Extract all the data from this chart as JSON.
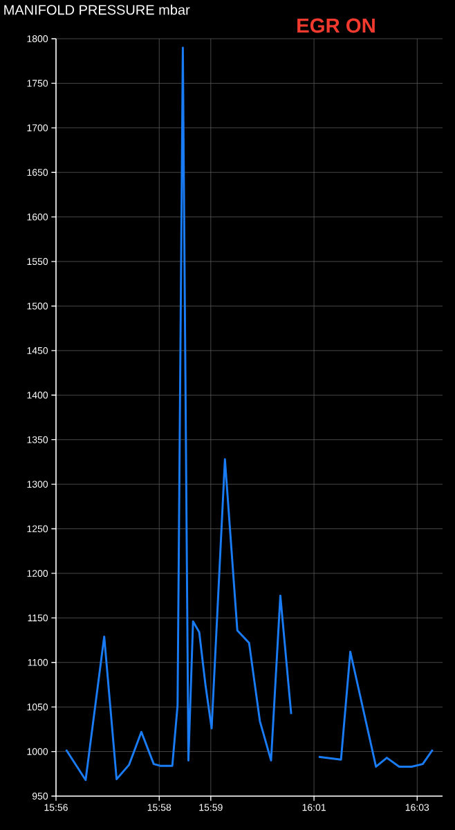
{
  "chart_data": {
    "type": "line",
    "title": "MANIFOLD PRESSURE  mbar",
    "annotations": [
      "EGR ON"
    ],
    "x": [
      15.9366,
      15.9429,
      15.9489,
      15.9529,
      15.9569,
      15.9609,
      15.9649,
      15.967,
      15.9689,
      15.9709,
      15.9726,
      15.9743,
      15.9761,
      15.9776,
      15.9796,
      15.9816,
      15.9836,
      15.9879,
      15.9919,
      15.9957,
      15.9992,
      16.0028,
      16.0058,
      16.0093,
      16.0133,
      16.0182,
      16.0254,
      16.0284,
      16.0367,
      16.0402,
      16.0442,
      16.0482,
      16.0518,
      16.055
    ],
    "series": [
      {
        "color": "#1a7cf5",
        "values": [
          1002,
          968,
          1129,
          969,
          985,
          1022,
          986,
          984,
          984,
          984,
          1052,
          1790,
          990,
          1146,
          1134,
          1075,
          1026,
          1328,
          1136,
          1122,
          1034,
          990,
          1175,
          1042,
          null,
          994,
          991,
          1112,
          983,
          993,
          983,
          983,
          986,
          1002
        ]
      }
    ],
    "xlim": [
      15.93333,
      16.0582
    ],
    "ylim": [
      950,
      1800
    ],
    "xticks": [
      {
        "value": 15.93333,
        "label": "15:56"
      },
      {
        "value": 15.96667,
        "label": "15:58"
      },
      {
        "value": 15.98333,
        "label": "15:59"
      },
      {
        "value": 16.01667,
        "label": "16:01"
      },
      {
        "value": 16.05,
        "label": "16:03"
      }
    ],
    "yticks": [
      950,
      1000,
      1050,
      1100,
      1150,
      1200,
      1250,
      1300,
      1350,
      1400,
      1450,
      1500,
      1550,
      1600,
      1650,
      1700,
      1750,
      1800
    ],
    "grid": true,
    "marker": "none",
    "line_style": "solid"
  }
}
